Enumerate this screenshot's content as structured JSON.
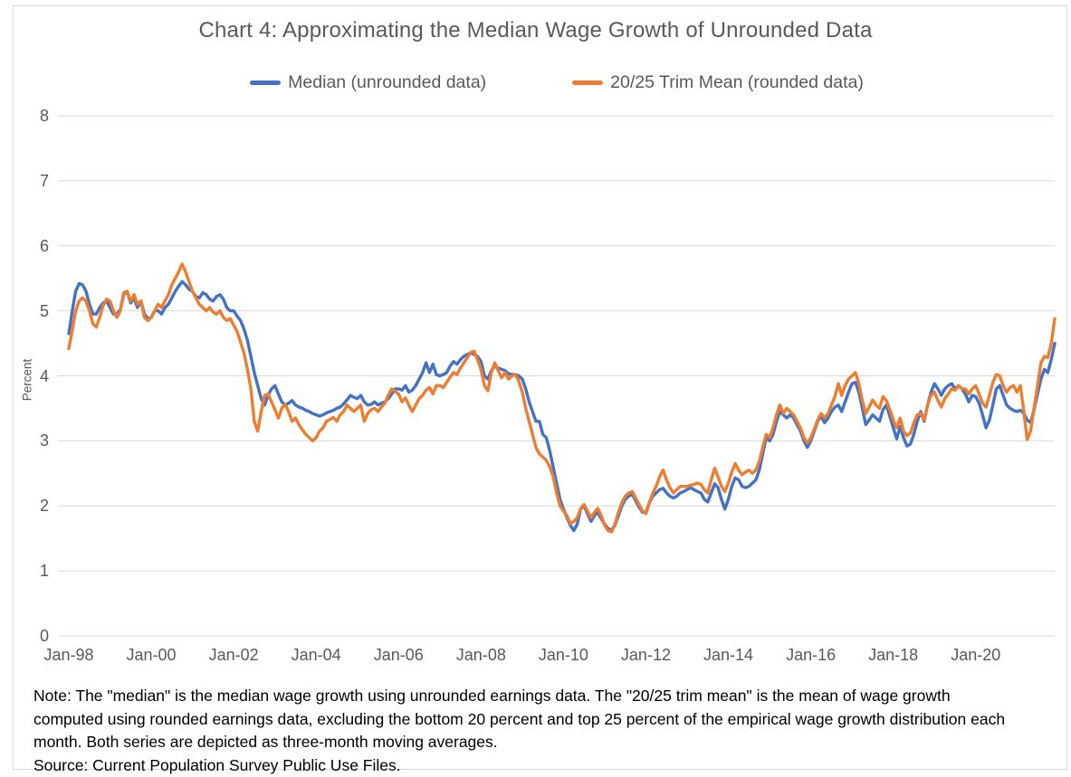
{
  "title": "Chart 4: Approximating the Median Wage Growth of Unrounded Data",
  "legend": [
    {
      "label": "Median (unrounded data)",
      "color": "#4472C4"
    },
    {
      "label": "20/25 Trim Mean (rounded data)",
      "color": "#ED7D31"
    }
  ],
  "y_axis": {
    "label": "Percent",
    "ticks": [
      "8",
      "7",
      "6",
      "5",
      "4",
      "3",
      "2",
      "1",
      "0"
    ]
  },
  "note_lines": [
    "Note: The \"median\" is the median wage growth using unrounded earnings data. The \"20/25 trim mean\" is the mean of wage growth",
    "computed using rounded earnings data, excluding the bottom 20 percent and top 25 percent of the empirical wage growth distribution each",
    "month. Both series are depicted as three-month moving averages."
  ],
  "source_line": "Source: Current Population Survey Public Use Files.",
  "chart_data": {
    "type": "line",
    "title": "Chart 4: Approximating the Median Wage Growth of Unrounded Data",
    "ylabel": "Percent",
    "ylim": [
      0,
      8
    ],
    "grid": "horizontal",
    "legend_position": "top-center",
    "x_start": "Jan-1998",
    "x_end": "Dec-2021",
    "frequency": "monthly",
    "x_tick_labels": [
      "Jan-98",
      "Jan-00",
      "Jan-02",
      "Jan-04",
      "Jan-06",
      "Jan-08",
      "Jan-10",
      "Jan-12",
      "Jan-14",
      "Jan-16",
      "Jan-18",
      "Jan-20"
    ],
    "x_tick_month_indices": [
      0,
      24,
      48,
      72,
      96,
      120,
      144,
      168,
      192,
      216,
      240,
      264
    ],
    "series": [
      {
        "name": "Median (unrounded data)",
        "color": "#4472C4",
        "values": [
          4.65,
          5.0,
          5.3,
          5.42,
          5.4,
          5.3,
          5.1,
          4.95,
          4.95,
          5.05,
          5.12,
          5.15,
          5.05,
          4.95,
          4.95,
          5.02,
          5.25,
          5.3,
          5.12,
          5.2,
          5.05,
          5.15,
          4.95,
          4.88,
          4.9,
          5.0,
          5.0,
          4.95,
          5.05,
          5.1,
          5.2,
          5.3,
          5.38,
          5.45,
          5.4,
          5.33,
          5.3,
          5.22,
          5.2,
          5.28,
          5.25,
          5.18,
          5.15,
          5.22,
          5.25,
          5.18,
          5.05,
          5.0,
          5.0,
          4.92,
          4.85,
          4.72,
          4.55,
          4.3,
          4.05,
          3.85,
          3.65,
          3.55,
          3.7,
          3.8,
          3.85,
          3.72,
          3.6,
          3.55,
          3.58,
          3.62,
          3.55,
          3.52,
          3.5,
          3.47,
          3.45,
          3.42,
          3.4,
          3.38,
          3.4,
          3.43,
          3.45,
          3.47,
          3.5,
          3.52,
          3.57,
          3.63,
          3.7,
          3.67,
          3.65,
          3.7,
          3.6,
          3.55,
          3.56,
          3.6,
          3.55,
          3.58,
          3.6,
          3.65,
          3.72,
          3.8,
          3.8,
          3.78,
          3.85,
          3.75,
          3.78,
          3.85,
          3.95,
          4.05,
          4.2,
          4.05,
          4.18,
          4.02,
          4.0,
          4.02,
          4.05,
          4.15,
          4.22,
          4.18,
          4.25,
          4.3,
          4.33,
          4.35,
          4.33,
          4.3,
          4.22,
          4.0,
          3.95,
          4.08,
          4.15,
          4.12,
          4.1,
          4.08,
          4.03,
          4.02,
          4.02,
          4.0,
          3.95,
          3.8,
          3.6,
          3.45,
          3.3,
          3.3,
          3.1,
          3.05,
          2.85,
          2.6,
          2.35,
          2.1,
          1.95,
          1.82,
          1.7,
          1.62,
          1.72,
          1.95,
          2.0,
          1.88,
          1.76,
          1.85,
          1.9,
          1.8,
          1.72,
          1.65,
          1.63,
          1.7,
          1.85,
          2.0,
          2.1,
          2.15,
          2.18,
          2.08,
          1.98,
          1.9,
          1.9,
          2.05,
          2.15,
          2.2,
          2.25,
          2.27,
          2.2,
          2.15,
          2.12,
          2.15,
          2.2,
          2.22,
          2.25,
          2.28,
          2.25,
          2.22,
          2.2,
          2.1,
          2.06,
          2.2,
          2.34,
          2.28,
          2.1,
          1.95,
          2.1,
          2.3,
          2.43,
          2.4,
          2.3,
          2.28,
          2.3,
          2.35,
          2.4,
          2.55,
          2.8,
          3.05,
          3.0,
          3.1,
          3.3,
          3.45,
          3.4,
          3.35,
          3.4,
          3.35,
          3.25,
          3.15,
          3.0,
          2.9,
          3.0,
          3.15,
          3.3,
          3.38,
          3.28,
          3.35,
          3.45,
          3.52,
          3.55,
          3.45,
          3.6,
          3.75,
          3.88,
          3.9,
          3.75,
          3.5,
          3.25,
          3.32,
          3.4,
          3.35,
          3.3,
          3.48,
          3.55,
          3.38,
          3.2,
          3.03,
          3.22,
          3.05,
          2.92,
          2.95,
          3.1,
          3.3,
          3.45,
          3.3,
          3.55,
          3.75,
          3.88,
          3.8,
          3.7,
          3.8,
          3.85,
          3.88,
          3.8,
          3.85,
          3.8,
          3.72,
          3.6,
          3.7,
          3.68,
          3.58,
          3.4,
          3.2,
          3.32,
          3.55,
          3.8,
          3.85,
          3.7,
          3.55,
          3.5,
          3.47,
          3.45,
          3.47,
          3.42,
          3.32,
          3.28,
          3.48,
          3.72,
          3.95,
          4.1,
          4.05,
          4.25,
          4.5
        ]
      },
      {
        "name": "20/25 Trim Mean (rounded data)",
        "color": "#ED7D31",
        "values": [
          4.42,
          4.7,
          5.0,
          5.15,
          5.2,
          5.15,
          5.0,
          4.8,
          4.75,
          4.9,
          5.08,
          5.18,
          5.15,
          5.0,
          4.9,
          5.0,
          5.28,
          5.3,
          5.15,
          5.25,
          5.1,
          5.15,
          4.9,
          4.85,
          4.9,
          5.0,
          5.1,
          5.05,
          5.15,
          5.25,
          5.4,
          5.5,
          5.6,
          5.72,
          5.6,
          5.45,
          5.3,
          5.2,
          5.1,
          5.05,
          5.0,
          5.05,
          4.98,
          4.95,
          5.0,
          4.9,
          4.85,
          4.88,
          4.78,
          4.68,
          4.52,
          4.35,
          4.1,
          3.8,
          3.3,
          3.15,
          3.45,
          3.7,
          3.72,
          3.6,
          3.48,
          3.35,
          3.5,
          3.56,
          3.45,
          3.3,
          3.35,
          3.25,
          3.17,
          3.1,
          3.05,
          3.0,
          3.05,
          3.15,
          3.2,
          3.3,
          3.33,
          3.36,
          3.3,
          3.4,
          3.45,
          3.55,
          3.5,
          3.45,
          3.5,
          3.55,
          3.3,
          3.42,
          3.48,
          3.5,
          3.45,
          3.52,
          3.58,
          3.7,
          3.8,
          3.76,
          3.72,
          3.6,
          3.66,
          3.55,
          3.45,
          3.55,
          3.65,
          3.7,
          3.78,
          3.82,
          3.72,
          3.85,
          3.85,
          3.82,
          3.9,
          3.98,
          4.05,
          4.02,
          4.12,
          4.2,
          4.28,
          4.36,
          4.38,
          4.25,
          4.1,
          3.85,
          3.77,
          4.05,
          4.2,
          4.08,
          3.97,
          4.05,
          3.95,
          4.0,
          4.02,
          3.92,
          3.75,
          3.5,
          3.3,
          3.1,
          2.9,
          2.8,
          2.75,
          2.7,
          2.6,
          2.45,
          2.2,
          2.0,
          1.92,
          1.85,
          1.73,
          1.76,
          1.82,
          1.96,
          2.02,
          1.92,
          1.82,
          1.9,
          1.96,
          1.85,
          1.7,
          1.62,
          1.6,
          1.72,
          1.9,
          2.05,
          2.15,
          2.2,
          2.22,
          2.12,
          2.02,
          1.92,
          1.88,
          2.05,
          2.2,
          2.3,
          2.45,
          2.55,
          2.4,
          2.28,
          2.2,
          2.25,
          2.3,
          2.3,
          2.3,
          2.32,
          2.33,
          2.35,
          2.33,
          2.25,
          2.2,
          2.4,
          2.58,
          2.45,
          2.3,
          2.22,
          2.35,
          2.52,
          2.65,
          2.55,
          2.48,
          2.52,
          2.55,
          2.5,
          2.55,
          2.68,
          2.9,
          3.1,
          3.05,
          3.2,
          3.4,
          3.55,
          3.42,
          3.5,
          3.45,
          3.4,
          3.3,
          3.2,
          3.05,
          2.97,
          3.05,
          3.18,
          3.32,
          3.42,
          3.35,
          3.42,
          3.55,
          3.68,
          3.88,
          3.7,
          3.85,
          3.95,
          4.0,
          4.05,
          3.88,
          3.62,
          3.42,
          3.52,
          3.63,
          3.55,
          3.5,
          3.68,
          3.62,
          3.48,
          3.32,
          3.2,
          3.35,
          3.15,
          3.08,
          3.12,
          3.28,
          3.4,
          3.42,
          3.32,
          3.55,
          3.7,
          3.75,
          3.62,
          3.52,
          3.65,
          3.72,
          3.8,
          3.78,
          3.85,
          3.8,
          3.8,
          3.72,
          3.8,
          3.85,
          3.72,
          3.58,
          3.52,
          3.7,
          3.9,
          4.02,
          4.0,
          3.85,
          3.75,
          3.82,
          3.85,
          3.75,
          3.85,
          3.45,
          3.02,
          3.15,
          3.5,
          3.85,
          4.2,
          4.3,
          4.28,
          4.5,
          4.88
        ]
      }
    ]
  }
}
